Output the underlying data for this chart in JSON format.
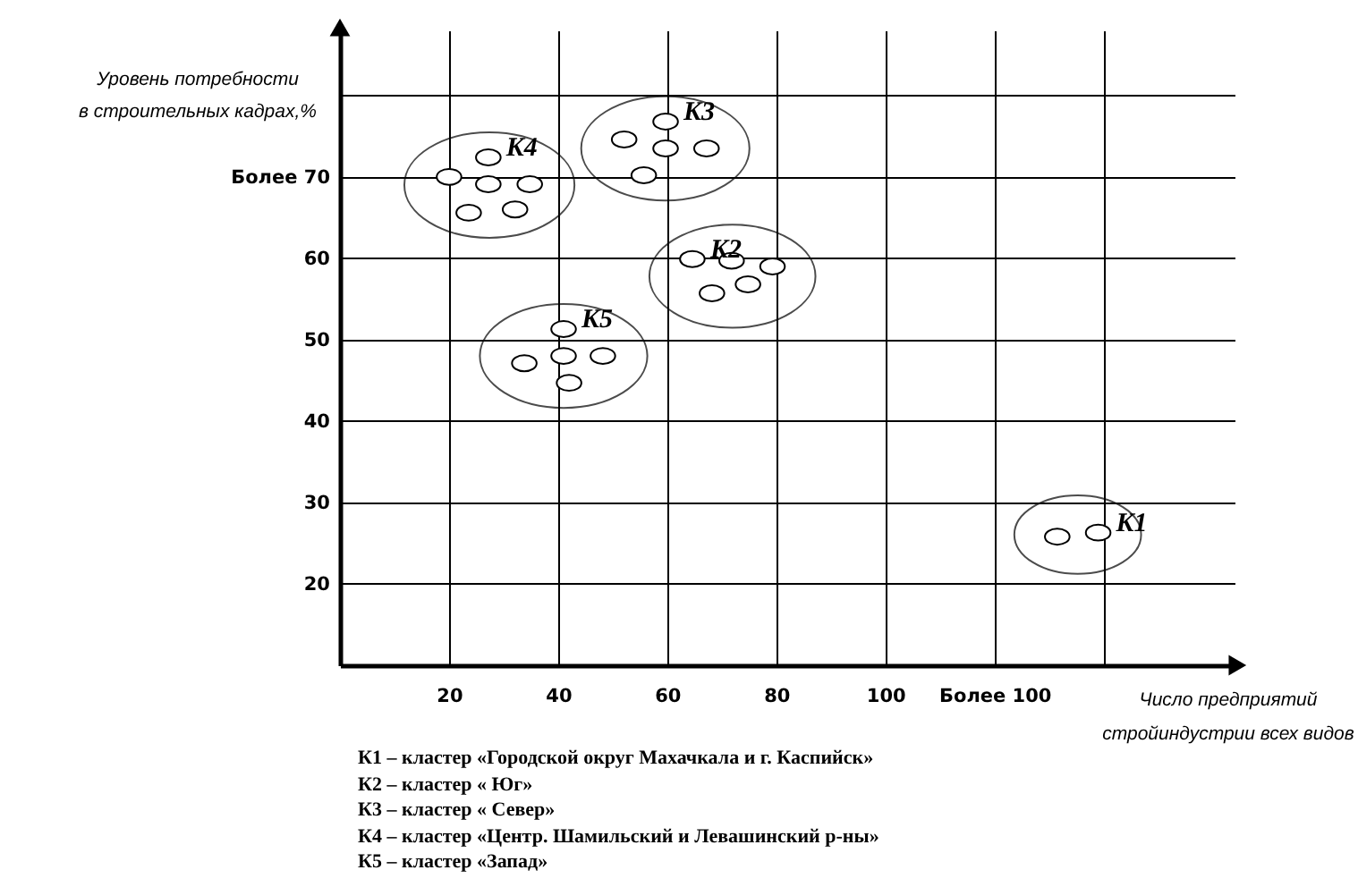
{
  "chart_data": {
    "type": "scatter",
    "xlabel": "Число предприятий\nстройиндустрии всех видов",
    "ylabel": "Уровень потребности\nв строительных кадрах,%",
    "xlim": [
      0,
      164
    ],
    "ylim": [
      10,
      88
    ],
    "xticks": [
      20,
      40,
      60,
      80,
      100,
      {
        "value": 120,
        "label": "Более 100"
      },
      {
        "value": 140,
        "label": null
      }
    ],
    "yticks": [
      20,
      30,
      40,
      50,
      60,
      {
        "value": 70,
        "label": "Более 70"
      },
      {
        "value": 80,
        "label": null
      }
    ],
    "grid": true,
    "marker": "circle",
    "series": [
      {
        "name": "K1",
        "color": "#000000",
        "x": [
          131.5,
          139
        ],
        "values": [
          25.8,
          26.3
        ]
      },
      {
        "name": "K2",
        "color": "#000000",
        "x": [
          64.6,
          71.8,
          79.3,
          74.8,
          68.2
        ],
        "values": [
          59.9,
          59.7,
          59,
          56.8,
          55.7
        ]
      },
      {
        "name": "K3",
        "color": "#000000",
        "x": [
          52.1,
          59.7,
          59.7,
          67.2,
          55.7
        ],
        "values": [
          74.6,
          76.8,
          73.5,
          73.5,
          70.2
        ]
      },
      {
        "name": "K4",
        "color": "#000000",
        "x": [
          20,
          27.2,
          27.2,
          34.8,
          23.6,
          32.1
        ],
        "values": [
          70,
          72.4,
          69.1,
          69.1,
          65.6,
          66
        ]
      },
      {
        "name": "K5",
        "color": "#000000",
        "x": [
          41,
          33.8,
          41,
          48.2,
          42
        ],
        "values": [
          51.3,
          47.1,
          48,
          48,
          44.7
        ]
      }
    ],
    "annotations": [
      "К1 – кластер «Городской округ Махачкала и г. Каспийск»",
      "К2 – кластер « Юг»",
      "К3 – кластер « Север»",
      "К4 – кластер «Центр. Шамильский и Левашинский р-ны»",
      "К5 – кластер «Запад»"
    ]
  }
}
